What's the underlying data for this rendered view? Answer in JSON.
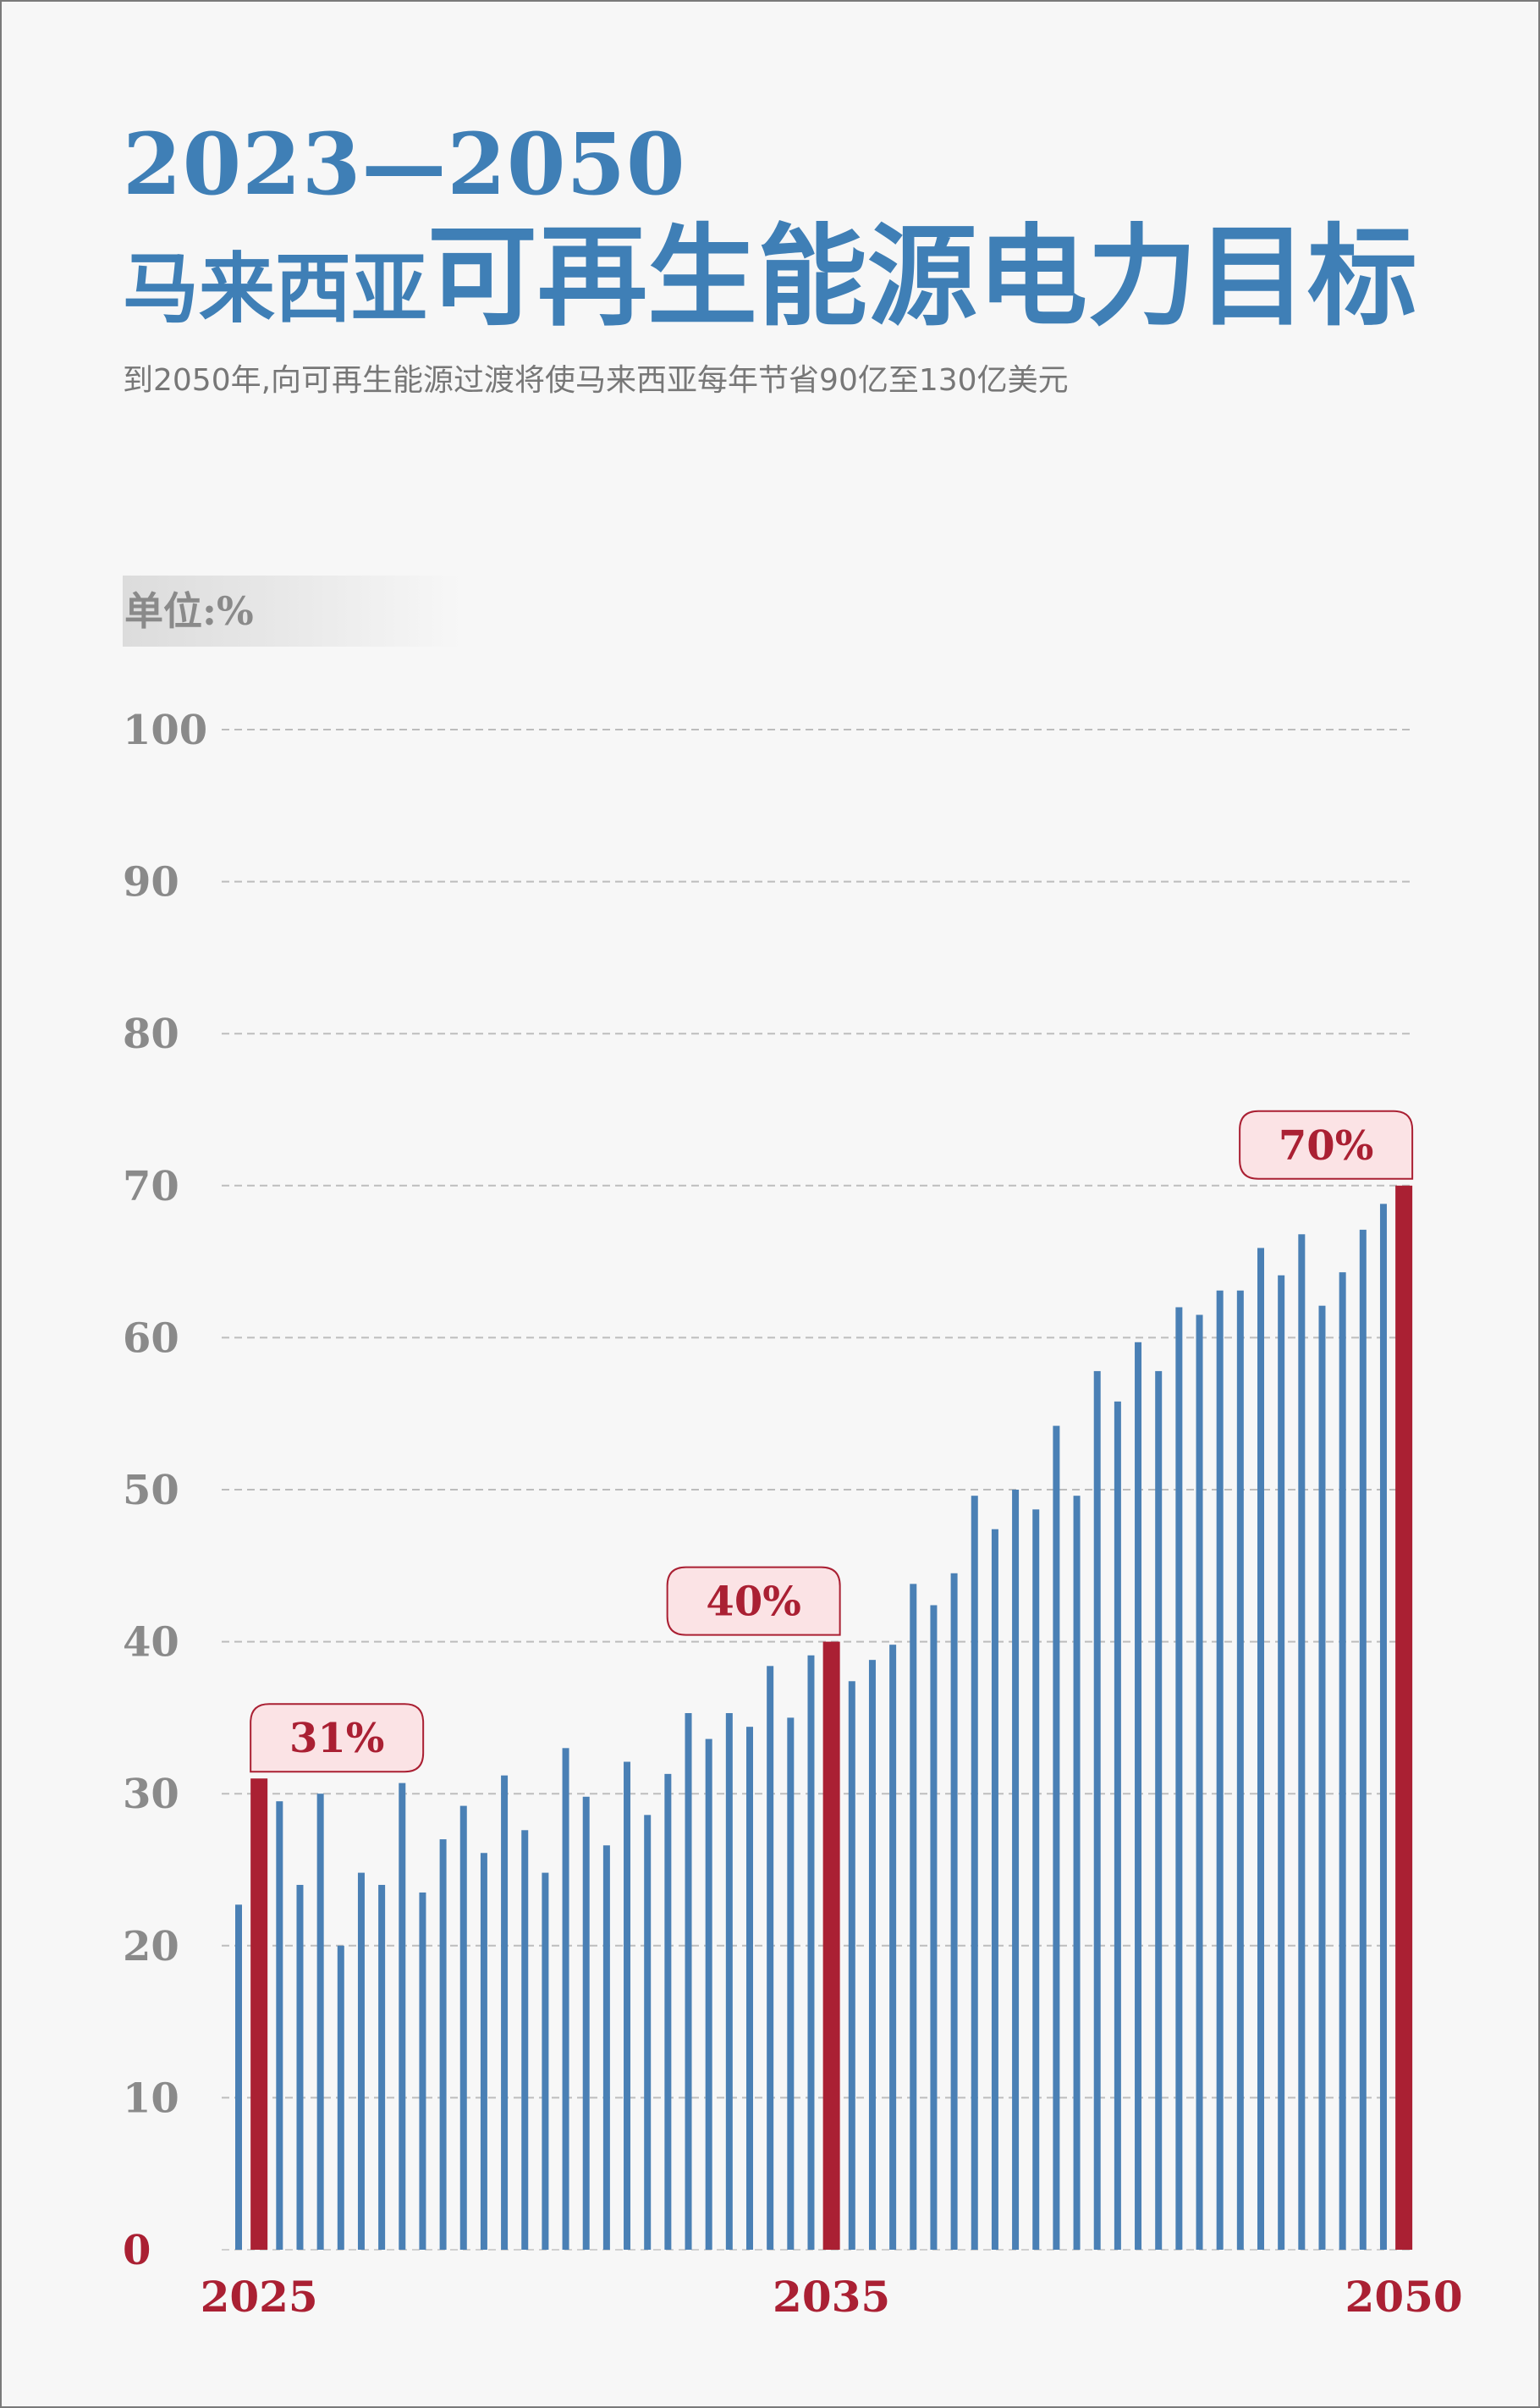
{
  "header": {
    "years": "2023—2050",
    "title_prefix": "马来西亚",
    "title_main": "可再生能源电力目标",
    "subtitle": "到2050年,向可再生能源过渡将使马来西亚每年节省90亿至130亿美元",
    "unit_label": "单位:%"
  },
  "colors": {
    "bar": "#4a80b5",
    "highlight": "#aa2033",
    "title": "#3f7fb6",
    "axis_text": "#8a8a8a",
    "callout_bg": "#fbe3e5"
  },
  "chart_data": {
    "type": "bar",
    "title": "2023—2050 马来西亚可再生能源电力目标",
    "ylabel": "单位:%",
    "xlabel": "",
    "ylim": [
      0,
      100
    ],
    "yticks": [
      "0",
      "10",
      "20",
      "30",
      "40",
      "50",
      "60",
      "70",
      "80",
      "90",
      "100"
    ],
    "grid": true,
    "values": [
      22.7,
      31,
      29.5,
      24,
      30,
      20,
      24.8,
      24,
      30.7,
      23.5,
      27,
      29.2,
      26.1,
      31.2,
      27.6,
      24.8,
      33,
      29.8,
      26.6,
      32.1,
      28.6,
      31.3,
      35.3,
      33.6,
      35.3,
      34.4,
      38.4,
      35,
      39.1,
      40,
      37.4,
      38.8,
      39.8,
      43.8,
      42.4,
      44.5,
      49.6,
      47.4,
      50,
      48.7,
      54.2,
      49.6,
      57.8,
      55.8,
      59.7,
      57.8,
      62,
      61.5,
      63.1,
      63.1,
      65.9,
      64.1,
      66.8,
      62.1,
      64.3,
      67.1,
      68.8,
      70
    ],
    "highlights": [
      {
        "index": 1,
        "label": "31%"
      },
      {
        "index": 29,
        "label": "40%"
      },
      {
        "index": 57,
        "label": "70%"
      }
    ],
    "x_tick_labels": [
      {
        "index": 1,
        "label": "2025"
      },
      {
        "index": 29,
        "label": "2035"
      },
      {
        "index": 57,
        "label": "2050"
      }
    ]
  }
}
